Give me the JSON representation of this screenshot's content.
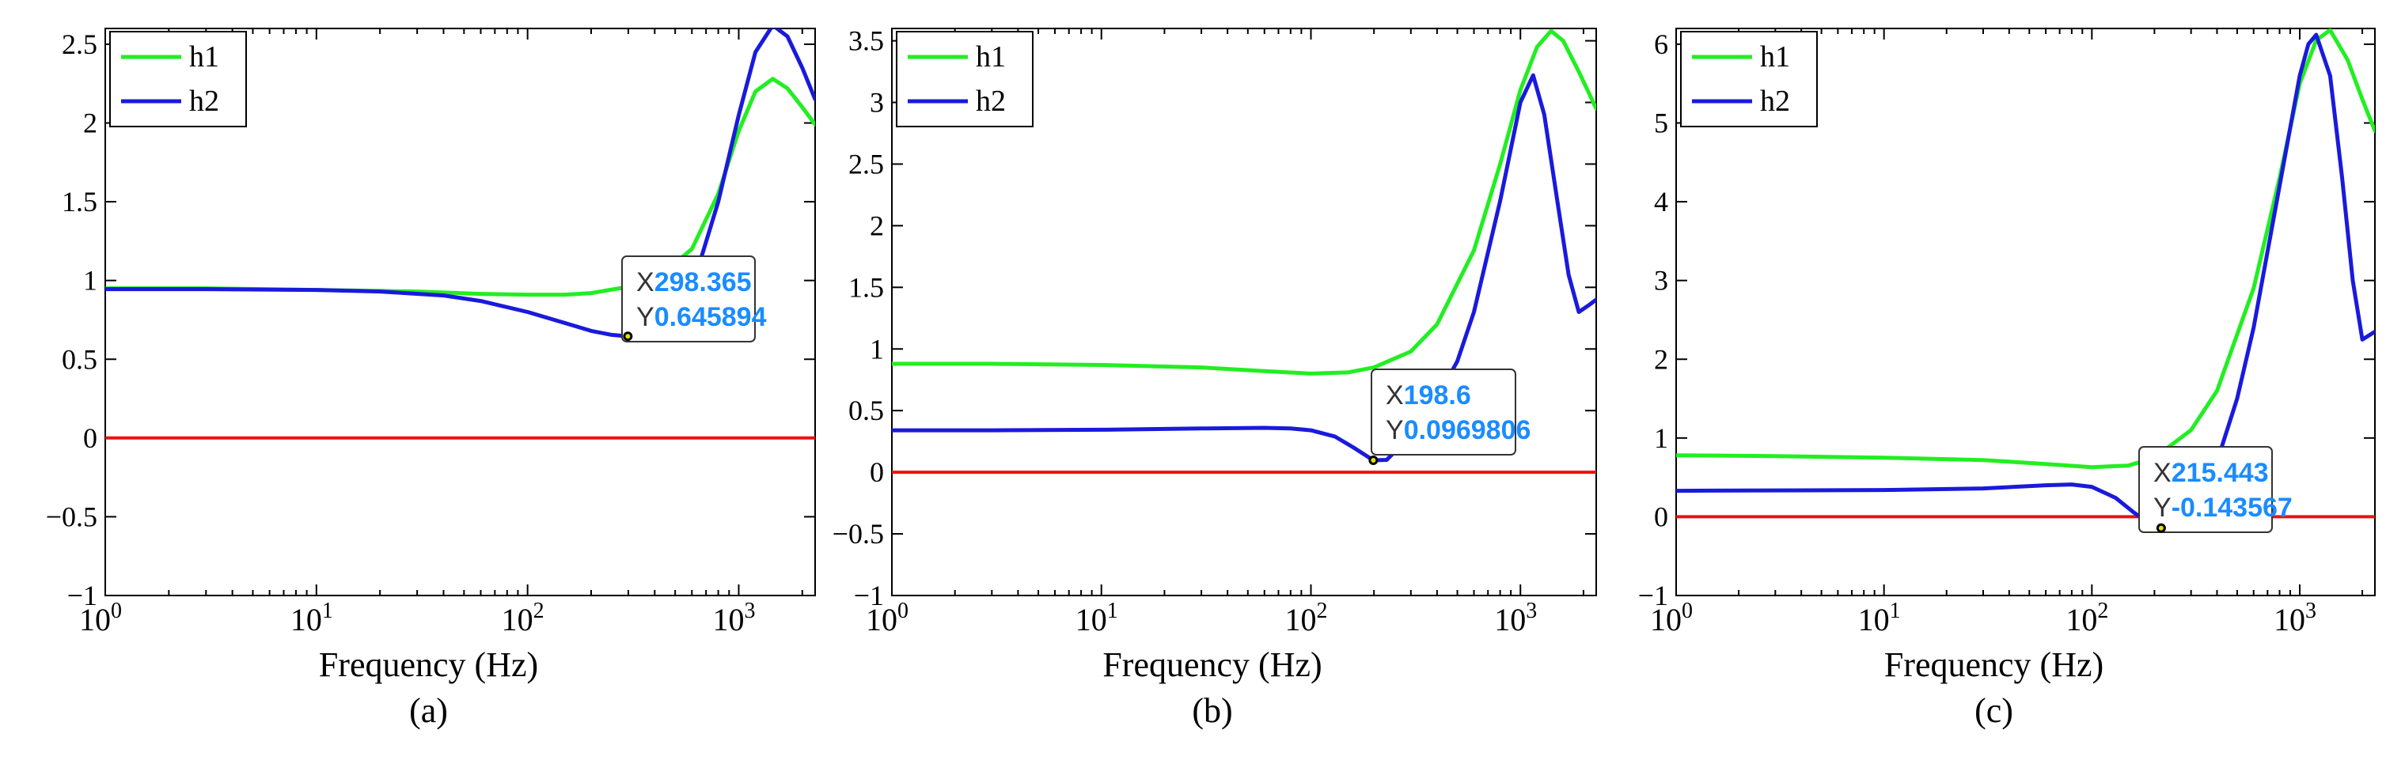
{
  "figure": {
    "background": "#ffffff"
  },
  "colors": {
    "h1": "#22ee22",
    "h2": "#1a1adc",
    "zero": "#ee1111",
    "tip_value": "#1a8cff",
    "axis": "#000000"
  },
  "chart_data": [
    {
      "type": "line",
      "panel_label": "(a)",
      "xlabel": "Frequency (Hz)",
      "ylabel": "",
      "xscale": "log",
      "xlim": [
        1,
        2300
      ],
      "ylim": [
        -1,
        2.6
      ],
      "yticks": [
        -1,
        -0.5,
        0,
        0.5,
        1,
        1.5,
        2,
        2.5
      ],
      "ytick_labels": [
        "−1",
        "−0.5",
        "0",
        "0.5",
        "1",
        "1.5",
        "2",
        "2.5"
      ],
      "xticks": [
        1,
        10,
        100,
        1000
      ],
      "xtick_labels": [
        {
          "base": "10",
          "exp": "0"
        },
        {
          "base": "10",
          "exp": "1"
        },
        {
          "base": "10",
          "exp": "2"
        },
        {
          "base": "10",
          "exp": "3"
        }
      ],
      "legend": {
        "position": "top-left",
        "entries": [
          "h1",
          "h2"
        ]
      },
      "series": [
        {
          "name": "h1",
          "color": "#22ee22",
          "x": [
            1,
            3,
            10,
            30,
            60,
            100,
            150,
            200,
            300,
            400,
            600,
            800,
            1000,
            1200,
            1450,
            1700,
            2000,
            2300
          ],
          "y": [
            0.95,
            0.95,
            0.94,
            0.93,
            0.915,
            0.91,
            0.91,
            0.92,
            0.96,
            1.0,
            1.2,
            1.55,
            1.95,
            2.2,
            2.28,
            2.22,
            2.1,
            1.99
          ]
        },
        {
          "name": "h2",
          "color": "#1a1adc",
          "x": [
            1,
            3,
            10,
            20,
            40,
            60,
            100,
            150,
            200,
            250,
            298.365,
            350,
            400,
            500,
            600,
            800,
            1000,
            1200,
            1450,
            1700,
            2000,
            2300
          ],
          "y": [
            0.945,
            0.945,
            0.94,
            0.93,
            0.905,
            0.87,
            0.8,
            0.73,
            0.68,
            0.655,
            0.645894,
            0.655,
            0.68,
            0.78,
            0.95,
            1.5,
            2.05,
            2.45,
            2.62,
            2.55,
            2.35,
            2.15
          ]
        },
        {
          "name": "zero",
          "color": "#ee1111",
          "x": [
            1,
            2300
          ],
          "y": [
            0,
            0
          ]
        }
      ],
      "datatip": {
        "x_label": "X",
        "y_label": "Y",
        "x_value": "298.365",
        "y_value": "0.645894",
        "x": 298.365,
        "y": 0.645894
      }
    },
    {
      "type": "line",
      "panel_label": "(b)",
      "xlabel": "Frequency (Hz)",
      "ylabel": "",
      "xscale": "log",
      "xlim": [
        1,
        2300
      ],
      "ylim": [
        -1,
        3.6
      ],
      "yticks": [
        -1,
        -0.5,
        0,
        0.5,
        1,
        1.5,
        2,
        2.5,
        3,
        3.5
      ],
      "ytick_labels": [
        "−1",
        "−0.5",
        "0",
        "0.5",
        "1",
        "1.5",
        "2",
        "2.5",
        "3",
        "3.5"
      ],
      "xticks": [
        1,
        10,
        100,
        1000
      ],
      "xtick_labels": [
        {
          "base": "10",
          "exp": "0"
        },
        {
          "base": "10",
          "exp": "1"
        },
        {
          "base": "10",
          "exp": "2"
        },
        {
          "base": "10",
          "exp": "3"
        }
      ],
      "legend": {
        "position": "top-left",
        "entries": [
          "h1",
          "h2"
        ]
      },
      "series": [
        {
          "name": "h1",
          "color": "#22ee22",
          "x": [
            1,
            3,
            10,
            30,
            60,
            100,
            150,
            200,
            300,
            400,
            600,
            800,
            1000,
            1200,
            1400,
            1600,
            1900,
            2300
          ],
          "y": [
            0.88,
            0.88,
            0.87,
            0.85,
            0.82,
            0.8,
            0.81,
            0.85,
            0.98,
            1.2,
            1.8,
            2.5,
            3.1,
            3.45,
            3.58,
            3.5,
            3.25,
            2.95
          ]
        },
        {
          "name": "h2",
          "color": "#1a1adc",
          "x": [
            1,
            3,
            10,
            30,
            60,
            80,
            100,
            130,
            160,
            198.6,
            230,
            300,
            400,
            500,
            600,
            800,
            1000,
            1150,
            1300,
            1500,
            1700,
            1900,
            2100,
            2300
          ],
          "y": [
            0.34,
            0.34,
            0.345,
            0.355,
            0.36,
            0.355,
            0.34,
            0.29,
            0.2,
            0.09698,
            0.1,
            0.3,
            0.6,
            0.9,
            1.3,
            2.2,
            3.0,
            3.22,
            2.9,
            2.2,
            1.6,
            1.3,
            1.35,
            1.4
          ]
        },
        {
          "name": "zero",
          "color": "#ee1111",
          "x": [
            1,
            2300
          ],
          "y": [
            0,
            0
          ]
        }
      ],
      "datatip": {
        "x_label": "X",
        "y_label": "Y",
        "x_value": "198.6",
        "y_value": "0.0969806",
        "x": 198.6,
        "y": 0.0969806
      }
    },
    {
      "type": "line",
      "panel_label": "(c)",
      "xlabel": "Frequency (Hz)",
      "ylabel": "",
      "xscale": "log",
      "xlim": [
        1,
        2300
      ],
      "ylim": [
        -1,
        6.2
      ],
      "yticks": [
        -1,
        0,
        1,
        2,
        3,
        4,
        5,
        6
      ],
      "ytick_labels": [
        "−1",
        "0",
        "1",
        "2",
        "3",
        "4",
        "5",
        "6"
      ],
      "xticks": [
        1,
        10,
        100,
        1000
      ],
      "xtick_labels": [
        {
          "base": "10",
          "exp": "0"
        },
        {
          "base": "10",
          "exp": "1"
        },
        {
          "base": "10",
          "exp": "2"
        },
        {
          "base": "10",
          "exp": "3"
        }
      ],
      "legend": {
        "position": "top-left",
        "entries": [
          "h1",
          "h2"
        ]
      },
      "series": [
        {
          "name": "h1",
          "color": "#22ee22",
          "x": [
            1,
            3,
            10,
            30,
            60,
            100,
            150,
            200,
            300,
            400,
            600,
            800,
            1000,
            1200,
            1400,
            1700,
            2000,
            2300
          ],
          "y": [
            0.78,
            0.77,
            0.75,
            0.72,
            0.67,
            0.63,
            0.65,
            0.75,
            1.1,
            1.6,
            2.9,
            4.3,
            5.5,
            6.05,
            6.18,
            5.8,
            5.3,
            4.9
          ]
        },
        {
          "name": "h2",
          "color": "#1a1adc",
          "x": [
            1,
            3,
            10,
            30,
            60,
            80,
            100,
            130,
            160,
            190,
            215.443,
            250,
            300,
            400,
            500,
            600,
            800,
            1000,
            1100,
            1200,
            1400,
            1600,
            1800,
            2000,
            2300
          ],
          "y": [
            0.33,
            0.335,
            0.34,
            0.36,
            0.4,
            0.41,
            0.38,
            0.24,
            0.05,
            -0.09,
            -0.143567,
            -0.08,
            0.15,
            0.7,
            1.5,
            2.4,
            4.2,
            5.6,
            6.0,
            6.12,
            5.6,
            4.3,
            3.0,
            2.25,
            2.35
          ]
        },
        {
          "name": "zero",
          "color": "#ee1111",
          "x": [
            1,
            2300
          ],
          "y": [
            0,
            0
          ]
        }
      ],
      "datatip": {
        "x_label": "X",
        "y_label": "Y",
        "x_value": "215.443",
        "y_value": "-0.143567",
        "x": 215.443,
        "y": -0.143567
      }
    }
  ]
}
